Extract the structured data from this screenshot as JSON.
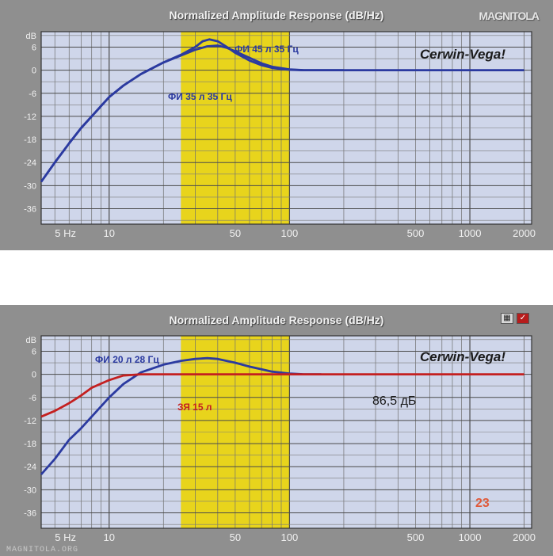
{
  "watermark_top": "MAGNITOLA",
  "watermark_bottom": "MAGNITOLA.ORG",
  "icons": [
    "speaker-icon",
    "check-icon"
  ],
  "chart_data": [
    {
      "type": "line",
      "title": "Normalized Amplitude Response (dB/Hz)",
      "brand": "Cerwin-Vega!",
      "xscale": "log",
      "xlim": [
        4.2,
        2200
      ],
      "ylim": [
        -40,
        10
      ],
      "ylabel_unit": "dB",
      "y_ticks": [
        "dB",
        "6",
        "0",
        "-6",
        "-12",
        "-18",
        "-24",
        "-30",
        "-36"
      ],
      "y_tick_values": [
        9,
        6,
        0,
        -6,
        -12,
        -18,
        -24,
        -30,
        -36
      ],
      "x_ticks": [
        "5 Hz",
        "10",
        "50",
        "100",
        "500",
        "1000",
        "2000"
      ],
      "x_tick_values": [
        5,
        10,
        50,
        100,
        500,
        1000,
        2000
      ],
      "band": [
        25,
        100
      ],
      "band_color": "#e8d41c",
      "plot_bg": "#cfd6ea",
      "grid": true,
      "series": [
        {
          "name": "ФИ 45 л 35 Гц",
          "color": "#2b3aa0",
          "x": [
            4.2,
            5,
            6,
            7,
            8,
            10,
            12,
            15,
            20,
            25,
            30,
            33,
            36,
            40,
            45,
            50,
            60,
            70,
            80,
            90,
            100,
            120,
            150,
            200,
            500,
            2000
          ],
          "y": [
            -29,
            -24,
            -19,
            -15,
            -12,
            -7,
            -4,
            -1,
            2,
            4,
            6,
            7.5,
            8,
            7.5,
            6,
            4.5,
            2.5,
            1.3,
            0.6,
            0.3,
            0.1,
            0,
            0,
            0,
            0,
            0
          ]
        },
        {
          "name": "ФИ 35 л 35 Гц",
          "color": "#2b3aa0",
          "x": [
            4.2,
            5,
            6,
            7,
            8,
            10,
            12,
            15,
            20,
            25,
            30,
            35,
            40,
            45,
            50,
            60,
            70,
            80,
            100,
            120,
            150,
            200
          ],
          "y": [
            -29,
            -24,
            -19,
            -15,
            -12,
            -7,
            -4,
            -1,
            2,
            3.8,
            5.3,
            6.2,
            6.4,
            5.8,
            4.9,
            3.2,
            1.8,
            0.9,
            0.2,
            0,
            0,
            0
          ]
        }
      ]
    },
    {
      "type": "line",
      "title": "Normalized Amplitude Response (dB/Hz)",
      "brand": "Cerwin-Vega!",
      "annotation": "86,5 дБ",
      "logo": "23",
      "xscale": "log",
      "xlim": [
        4.2,
        2200
      ],
      "ylim": [
        -40,
        10
      ],
      "ylabel_unit": "dB",
      "y_ticks": [
        "dB",
        "6",
        "0",
        "-6",
        "-12",
        "-18",
        "-24",
        "-30",
        "-36"
      ],
      "y_tick_values": [
        9,
        6,
        0,
        -6,
        -12,
        -18,
        -24,
        -30,
        -36
      ],
      "x_ticks": [
        "5 Hz",
        "10",
        "50",
        "100",
        "500",
        "1000",
        "2000"
      ],
      "x_tick_values": [
        5,
        10,
        50,
        100,
        500,
        1000,
        2000
      ],
      "band": [
        25,
        100
      ],
      "band_color": "#e8d41c",
      "plot_bg": "#cfd6ea",
      "grid": true,
      "series": [
        {
          "name": "ФИ 20 л 28 Гц",
          "color": "#2b3aa0",
          "x": [
            4.2,
            5,
            6,
            7,
            8,
            10,
            12,
            15,
            20,
            25,
            30,
            35,
            40,
            50,
            60,
            70,
            80,
            100,
            120,
            150
          ],
          "y": [
            -26,
            -22,
            -17,
            -14,
            -11,
            -6,
            -2.5,
            0.5,
            2.5,
            3.5,
            4,
            4.2,
            4,
            3,
            2,
            1.3,
            0.7,
            0.2,
            0,
            0
          ]
        },
        {
          "name": "ЗЯ 15 л",
          "color": "#c42020",
          "x": [
            4.2,
            5,
            6,
            7,
            8,
            10,
            12,
            15,
            20,
            30,
            50,
            100,
            200,
            500,
            1000,
            2000
          ],
          "y": [
            -11,
            -9.5,
            -7.5,
            -5.5,
            -3.5,
            -1.5,
            -0.3,
            0,
            0,
            0,
            0,
            0,
            0,
            0,
            0,
            0
          ]
        }
      ]
    }
  ]
}
